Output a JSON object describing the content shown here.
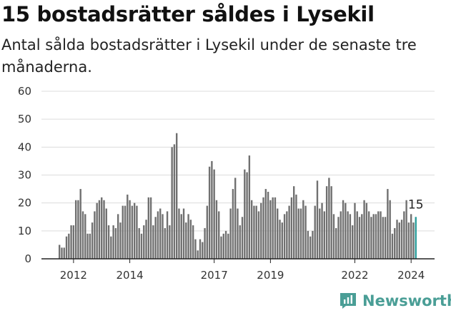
{
  "header": {
    "title": "15 bostadsrätter såldes i Lysekil",
    "subtitle": "Antal sålda bostadsrätter i Lysekil under de senaste tre månaderna."
  },
  "brand": {
    "name": "Newsworthy",
    "icon": "newsworthy-logo-icon",
    "color": "#4a9e96"
  },
  "colors": {
    "bar": "#707070",
    "highlight": "#2a9d9b",
    "grid": "#dcdcdc",
    "axis": "#222222"
  },
  "chart_data": {
    "type": "bar",
    "ylim": [
      0,
      60
    ],
    "yticks": [
      0,
      10,
      20,
      30,
      40,
      50,
      60
    ],
    "grid": true,
    "xtick_labels": [
      "2012",
      "2014",
      "2017",
      "2019",
      "2022",
      "2024"
    ],
    "xtick_index": [
      6,
      30,
      66,
      90,
      126,
      150
    ],
    "end_label": "15",
    "highlight_last": true,
    "values": [
      5,
      4,
      4,
      8,
      9,
      12,
      12,
      21,
      21,
      25,
      17,
      16,
      9,
      9,
      13,
      17,
      20,
      21,
      22,
      21,
      18,
      12,
      8,
      12,
      11,
      16,
      13,
      19,
      19,
      23,
      21,
      19,
      20,
      19,
      11,
      9,
      12,
      14,
      22,
      22,
      12,
      15,
      17,
      18,
      16,
      11,
      17,
      12,
      40,
      41,
      45,
      18,
      16,
      18,
      13,
      16,
      14,
      12,
      7,
      3,
      7,
      6,
      11,
      19,
      33,
      35,
      32,
      21,
      17,
      8,
      9,
      10,
      9,
      18,
      25,
      29,
      18,
      12,
      15,
      32,
      31,
      37,
      21,
      19,
      19,
      17,
      20,
      22,
      25,
      24,
      21,
      22,
      22,
      18,
      14,
      13,
      16,
      17,
      19,
      22,
      26,
      23,
      18,
      18,
      21,
      19,
      10,
      8,
      10,
      19,
      28,
      18,
      20,
      17,
      26,
      29,
      26,
      16,
      11,
      15,
      17,
      21,
      20,
      17,
      16,
      12,
      20,
      17,
      15,
      16,
      21,
      20,
      17,
      15,
      16,
      16,
      17,
      17,
      15,
      15,
      25,
      21,
      9,
      11,
      14,
      13,
      14,
      17,
      21,
      13,
      16,
      13,
      15
    ]
  }
}
